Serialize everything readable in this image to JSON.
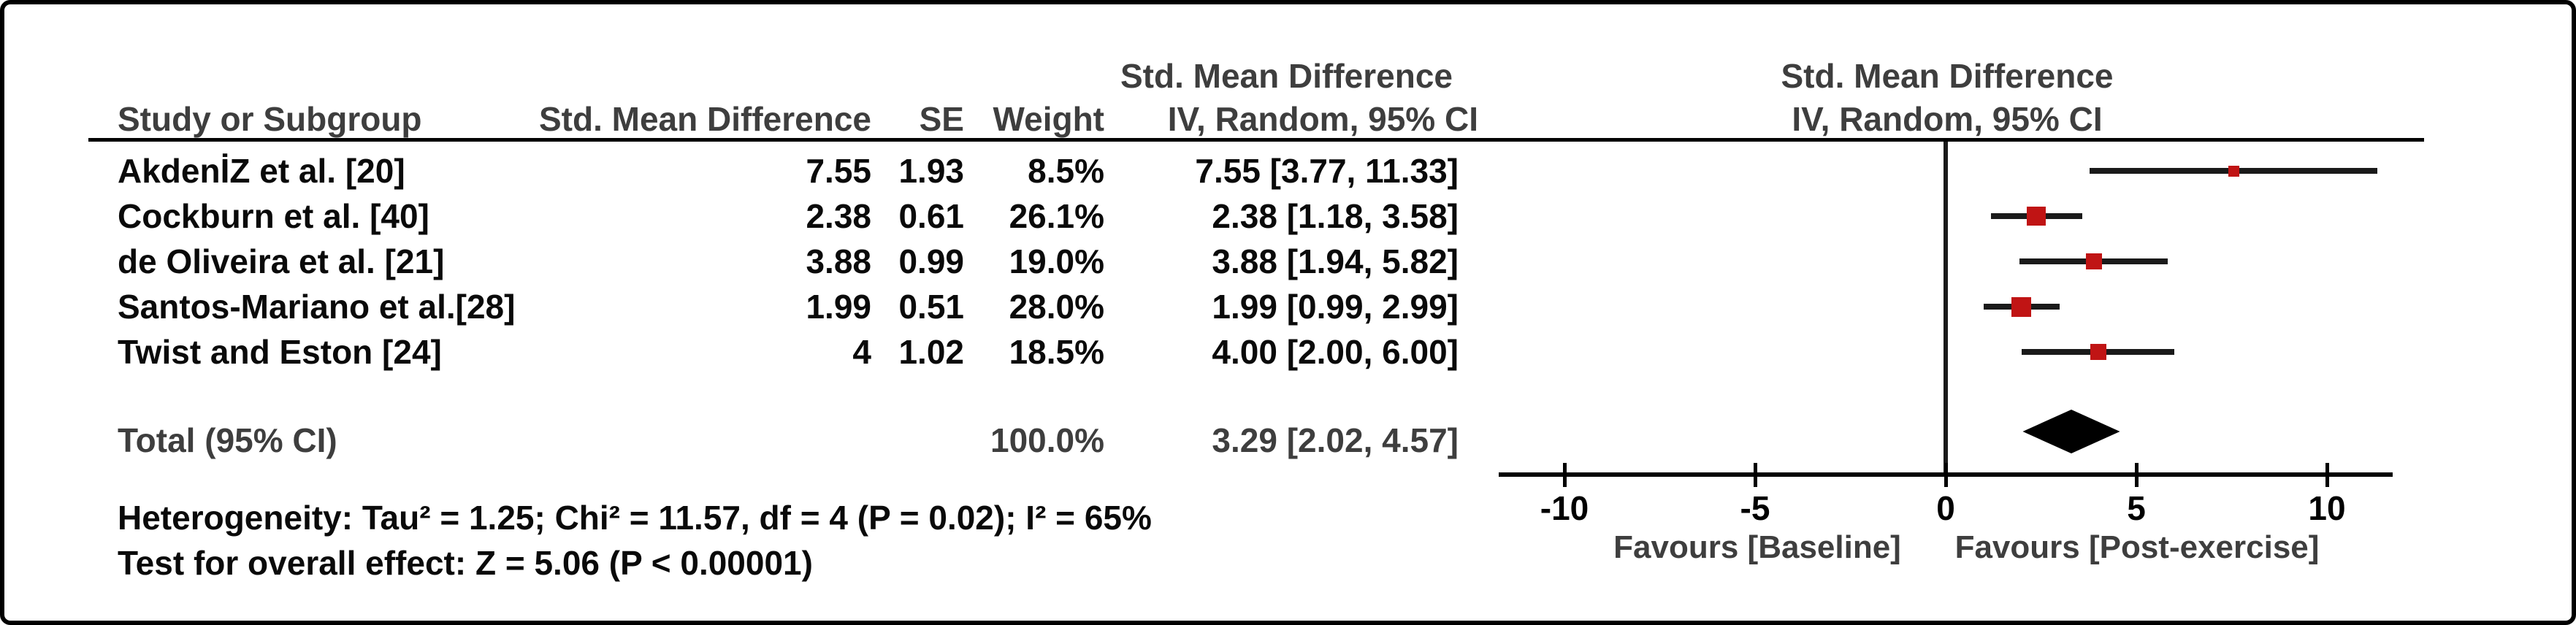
{
  "table": {
    "headers": {
      "study": "Study or Subgroup",
      "smd": "Std. Mean Difference",
      "se": "SE",
      "weight": "Weight",
      "ci_line1": "Std. Mean Difference",
      "ci_line2": "IV, Random, 95% CI",
      "plot_line1": "Std. Mean Difference",
      "plot_line2": "IV, Random, 95% CI"
    },
    "rows": [
      {
        "name": "AkdenİZ et al. [20]",
        "smd": "7.55",
        "se": "1.93",
        "weight": "8.5%",
        "ci": "7.55 [3.77, 11.33]"
      },
      {
        "name": "Cockburn et al. [40]",
        "smd": "2.38",
        "se": "0.61",
        "weight": "26.1%",
        "ci": "2.38 [1.18, 3.58]"
      },
      {
        "name": "de Oliveira et al. [21]",
        "smd": "3.88",
        "se": "0.99",
        "weight": "19.0%",
        "ci": "3.88 [1.94, 5.82]"
      },
      {
        "name": "Santos-Mariano et al.[28]",
        "smd": "1.99",
        "se": "0.51",
        "weight": "28.0%",
        "ci": "1.99 [0.99, 2.99]"
      },
      {
        "name": "Twist and Eston [24]",
        "smd": "4",
        "se": "1.02",
        "weight": "18.5%",
        "ci": "4.00 [2.00, 6.00]"
      }
    ],
    "total": {
      "label": "Total (95% CI)",
      "weight": "100.0%",
      "ci": "3.29 [2.02, 4.57]"
    }
  },
  "footnotes": {
    "heterogeneity": "Heterogeneity: Tau² = 1.25; Chi² = 11.57, df = 4 (P = 0.02); I² = 65%",
    "overall_effect": "Test for overall effect: Z = 5.06 (P < 0.00001)"
  },
  "axis": {
    "tick_values": [
      -10,
      -5,
      0,
      5,
      10
    ],
    "tick_labels": [
      "-10",
      "-5",
      "0",
      "5",
      "10"
    ],
    "favours_left": "Favours [Baseline]",
    "favours_right": "Favours [Post-exercise]"
  },
  "colors": {
    "marker_red": "#c01414",
    "line_black": "#1a1a1a",
    "bold_gray": "#3e3e3e",
    "diamond_black": "#000000"
  },
  "chart_data": {
    "type": "forest",
    "effect_measure": "Std. Mean Difference, IV, Random, 95% CI",
    "x_axis_range": [
      -11.7,
      11.7
    ],
    "x_ticks": [
      -10,
      -5,
      0,
      5,
      10
    ],
    "zero_line": 0,
    "studies": [
      {
        "name": "AkdenİZ et al. [20]",
        "smd": 7.55,
        "se": 1.93,
        "weight_pct": 8.5,
        "ci_low": 3.77,
        "ci_high": 11.33
      },
      {
        "name": "Cockburn et al. [40]",
        "smd": 2.38,
        "se": 0.61,
        "weight_pct": 26.1,
        "ci_low": 1.18,
        "ci_high": 3.58
      },
      {
        "name": "de Oliveira et al. [21]",
        "smd": 3.88,
        "se": 0.99,
        "weight_pct": 19.0,
        "ci_low": 1.94,
        "ci_high": 5.82
      },
      {
        "name": "Santos-Mariano et al.[28]",
        "smd": 1.99,
        "se": 0.51,
        "weight_pct": 28.0,
        "ci_low": 0.99,
        "ci_high": 2.99
      },
      {
        "name": "Twist and Eston [24]",
        "smd": 4.0,
        "se": 1.02,
        "weight_pct": 18.5,
        "ci_low": 2.0,
        "ci_high": 6.0
      }
    ],
    "total": {
      "smd": 3.29,
      "ci_low": 2.02,
      "ci_high": 4.57,
      "weight_pct": 100.0
    },
    "heterogeneity": {
      "tau2": 1.25,
      "chi2": 11.57,
      "df": 4,
      "p": 0.02,
      "i2_pct": 65
    },
    "overall_effect": {
      "z": 5.06,
      "p": "< 0.00001"
    }
  }
}
